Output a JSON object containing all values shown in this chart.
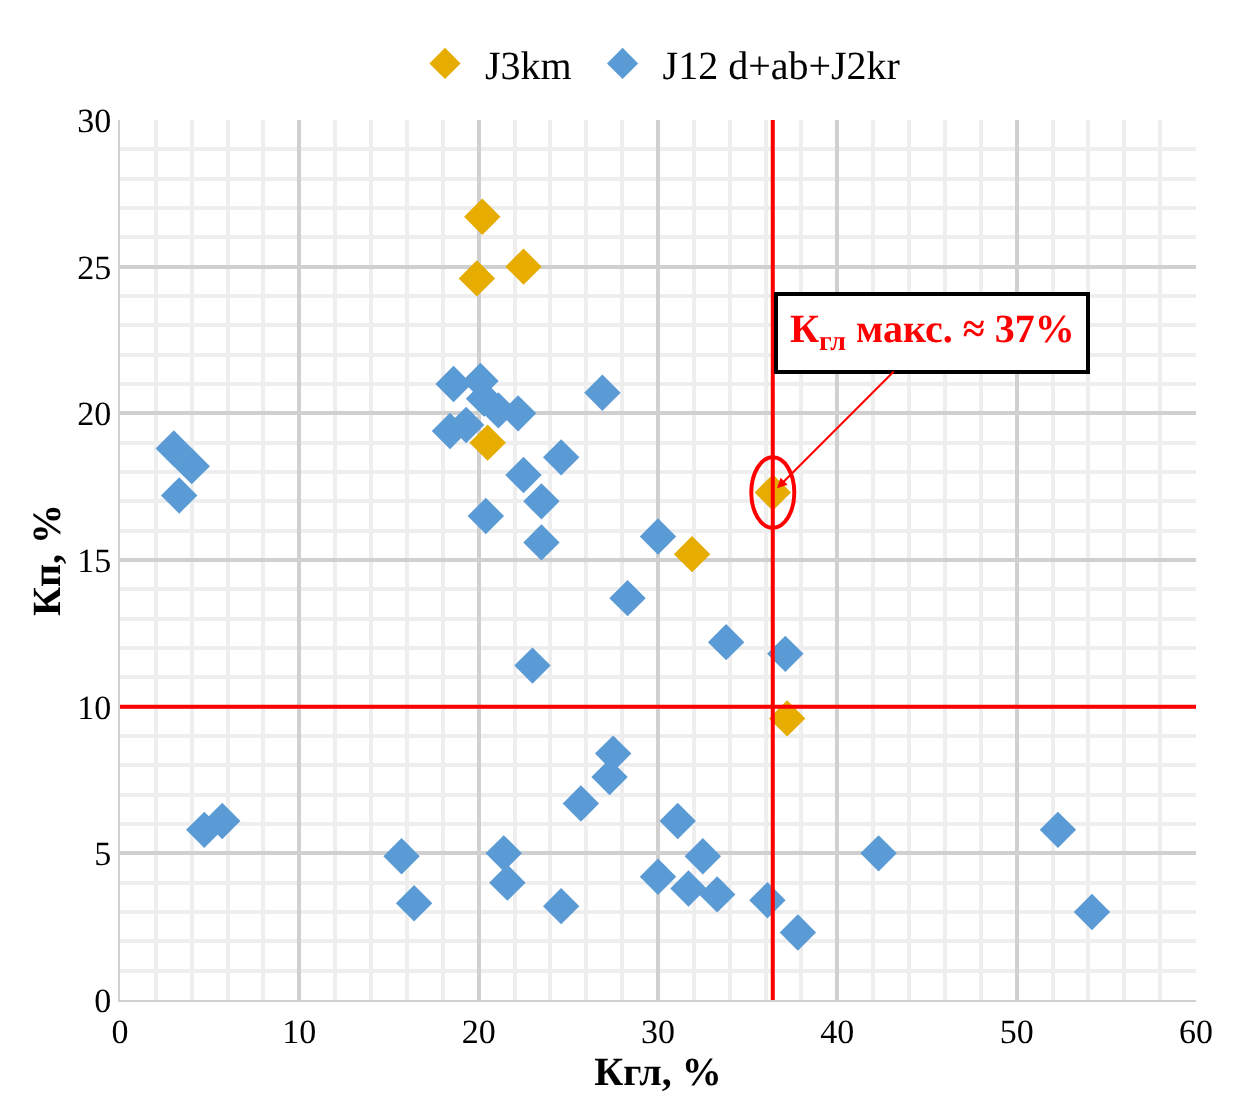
{
  "chart_data": {
    "type": "scatter",
    "xlabel": "Кгл, %",
    "ylabel": "Кп, %",
    "xlim": [
      0,
      60
    ],
    "xticks": [
      0,
      10,
      20,
      30,
      40,
      50,
      60
    ],
    "ylim": [
      0,
      30
    ],
    "yticks": [
      0,
      5,
      10,
      15,
      20,
      25,
      30
    ],
    "grid": true,
    "legend": "top",
    "marker": "diamond",
    "series": [
      {
        "name": "J3km",
        "color": "#e6ac00",
        "x": [
          20.2,
          19.9,
          22.5,
          20.5,
          31.9,
          36.4,
          37.2
        ],
        "values": [
          26.7,
          24.6,
          25.0,
          19.0,
          15.2,
          17.3,
          9.6
        ]
      },
      {
        "name": "J12 d+ab+J2kr",
        "color": "#5b9bd5",
        "x": [
          3.0,
          4.0,
          3.3,
          18.6,
          20.1,
          20.3,
          21.1,
          22.2,
          18.4,
          19.3,
          26.9,
          24.6,
          22.5,
          23.5,
          20.4,
          23.5,
          30.0,
          28.3,
          23.0,
          27.5,
          33.8,
          37.1,
          27.3,
          4.7,
          5.7,
          15.7,
          16.4,
          21.4,
          21.6,
          24.6,
          25.7,
          31.1,
          32.5,
          30.0,
          31.7,
          33.3,
          36.1,
          37.8,
          42.3,
          52.3,
          54.2
        ],
        "values": [
          18.8,
          18.2,
          17.2,
          21.0,
          21.1,
          20.5,
          20.1,
          20.0,
          19.4,
          19.6,
          20.7,
          18.5,
          17.9,
          17.0,
          16.5,
          15.6,
          15.8,
          13.7,
          11.4,
          8.4,
          12.2,
          11.8,
          7.6,
          5.8,
          6.1,
          4.9,
          3.3,
          5.0,
          4.0,
          3.2,
          6.7,
          6.1,
          4.9,
          4.2,
          3.8,
          3.6,
          3.4,
          2.3,
          5.0,
          5.8,
          3.0
        ]
      }
    ],
    "ref_lines": [
      {
        "axis": "y",
        "value": 10,
        "color": "#ff0000"
      },
      {
        "axis": "x",
        "value": 36.4,
        "color": "#ff0000"
      }
    ],
    "annotations": [
      {
        "text": "К$_{гл}$ макс. ≈ 37%",
        "x": 36.4,
        "y": 17.3
      }
    ]
  }
}
